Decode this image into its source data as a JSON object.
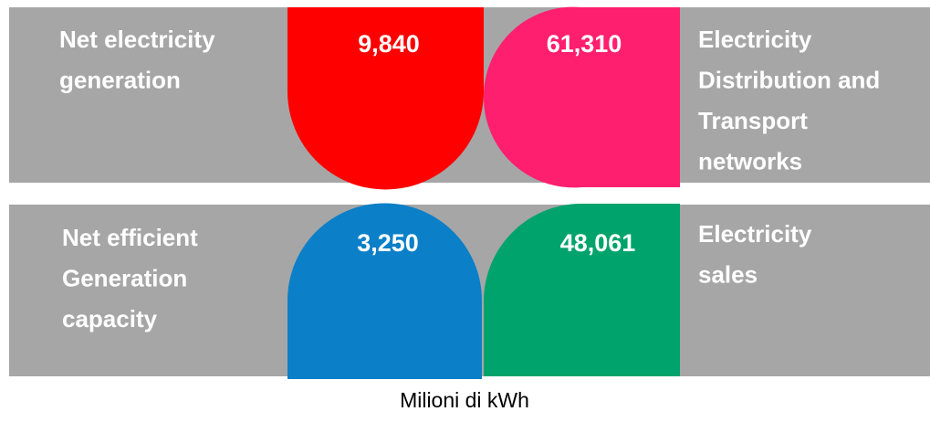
{
  "panels": [
    {
      "label": [
        "Net electricity",
        "generation"
      ],
      "value": "9,840"
    },
    {
      "label": [
        "Electricity",
        "Distribution and",
        "Transport",
        "networks"
      ],
      "value": "61,310"
    },
    {
      "label": [
        "Net efficient",
        "Generation",
        "capacity"
      ],
      "value": "3,250"
    },
    {
      "label": [
        "Electricity",
        "sales"
      ],
      "value": "48,061"
    }
  ],
  "caption": "Milioni di kWh"
}
